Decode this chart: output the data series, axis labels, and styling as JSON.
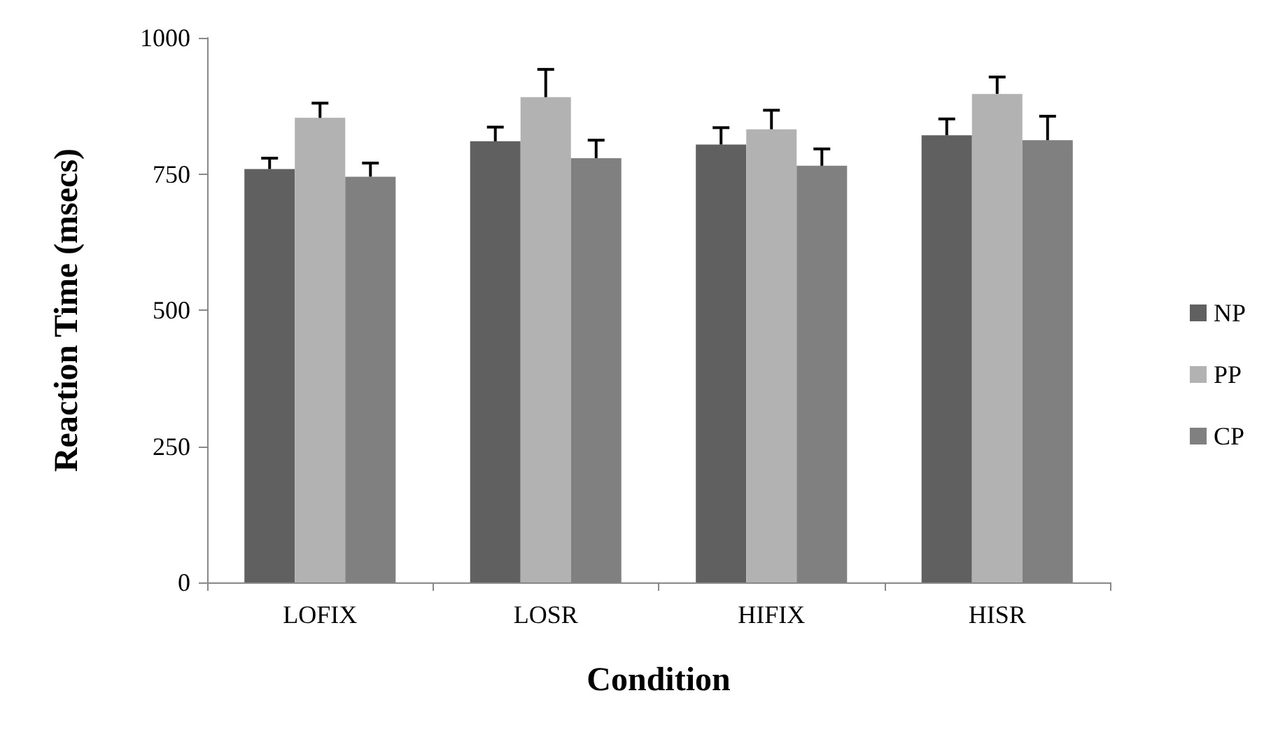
{
  "chart_data": {
    "type": "bar",
    "xlabel": "Condition",
    "ylabel": "Reaction Time (msecs)",
    "categories": [
      "LOFIX",
      "LOSR",
      "HIFIX",
      "HISR"
    ],
    "series": [
      {
        "name": "NP",
        "color": "#606060",
        "values": [
          759,
          810,
          804,
          821
        ],
        "errors": [
          [
            759,
            779
          ],
          [
            810,
            836
          ],
          [
            804,
            835
          ],
          [
            821,
            851
          ]
        ]
      },
      {
        "name": "PP",
        "color": "#b2b2b2",
        "values": [
          853,
          891,
          832,
          897
        ],
        "errors": [
          [
            853,
            880
          ],
          [
            891,
            942
          ],
          [
            832,
            867
          ],
          [
            897,
            928
          ]
        ]
      },
      {
        "name": "CP",
        "color": "#808080",
        "values": [
          745,
          779,
          765,
          812
        ],
        "errors": [
          [
            745,
            770
          ],
          [
            779,
            812
          ],
          [
            765,
            796
          ],
          [
            812,
            856
          ]
        ]
      }
    ],
    "ylim": [
      0,
      1000
    ],
    "yticks": [
      0,
      250,
      500,
      750,
      1000
    ],
    "grid": false,
    "legend": "right"
  }
}
